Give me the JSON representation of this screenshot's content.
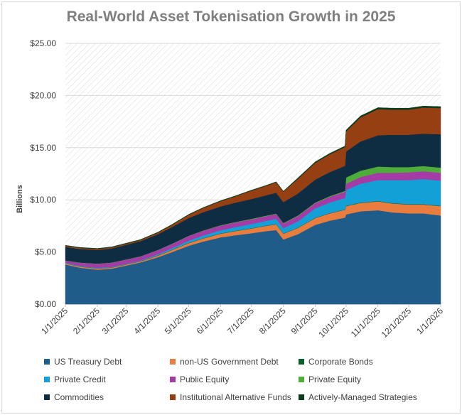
{
  "chart_data": {
    "type": "area",
    "title": "Real-World Asset Tokenisation Growth in 2025",
    "ylabel": "Billions",
    "xlabel": "",
    "ylim": [
      0,
      25
    ],
    "y_ticks": [
      "$0.00",
      "$5.00",
      "$10.00",
      "$15.00",
      "$20.00",
      "$25.00"
    ],
    "x_ticks": [
      "1/1/2025",
      "2/1/2025",
      "3/1/2025",
      "4/1/2025",
      "5/1/2025",
      "6/1/2025",
      "7/1/2025",
      "8/1/2025",
      "9/1/2025",
      "10/1/2025",
      "11/1/2025",
      "12/1/2025",
      "1/1/2026"
    ],
    "x": [
      "1/1/2025",
      "1/15/2025",
      "2/1/2025",
      "2/15/2025",
      "3/1/2025",
      "3/15/2025",
      "4/1/2025",
      "4/15/2025",
      "5/1/2025",
      "5/15/2025",
      "6/1/2025",
      "6/15/2025",
      "7/1/2025",
      "7/15/2025",
      "7/25/2025",
      "8/1/2025",
      "8/15/2025",
      "9/1/2025",
      "9/15/2025",
      "9/30/2025",
      "10/1/2025",
      "10/15/2025",
      "11/1/2025",
      "11/15/2025",
      "12/1/2025",
      "12/15/2025",
      "1/1/2026"
    ],
    "stacked": true,
    "series": [
      {
        "name": "US Treasury Debt",
        "color": "#1f5c8a",
        "values": [
          3.8,
          3.5,
          3.3,
          3.4,
          3.7,
          4.0,
          4.5,
          5.0,
          5.6,
          6.0,
          6.4,
          6.6,
          6.8,
          7.0,
          7.1,
          6.2,
          6.7,
          7.6,
          8.0,
          8.3,
          8.6,
          8.9,
          9.0,
          8.8,
          8.7,
          8.7,
          8.5
        ]
      },
      {
        "name": "non-US Government Debt",
        "color": "#e87d3e",
        "values": [
          0.1,
          0.1,
          0.1,
          0.1,
          0.1,
          0.1,
          0.15,
          0.2,
          0.25,
          0.3,
          0.35,
          0.4,
          0.45,
          0.5,
          0.55,
          0.55,
          0.6,
          0.65,
          0.7,
          0.75,
          0.8,
          0.8,
          0.85,
          0.85,
          0.85,
          0.85,
          0.9
        ]
      },
      {
        "name": "Corporate Bonds",
        "color": "#0b5e2b",
        "values": [
          0.02,
          0.02,
          0.02,
          0.02,
          0.02,
          0.02,
          0.03,
          0.03,
          0.03,
          0.03,
          0.03,
          0.03,
          0.03,
          0.03,
          0.03,
          0.03,
          0.03,
          0.03,
          0.03,
          0.03,
          0.04,
          0.04,
          0.04,
          0.04,
          0.04,
          0.04,
          0.04
        ]
      },
      {
        "name": "Private Credit",
        "color": "#12a0d7",
        "values": [
          0.05,
          0.05,
          0.05,
          0.05,
          0.05,
          0.05,
          0.1,
          0.15,
          0.2,
          0.25,
          0.3,
          0.35,
          0.4,
          0.45,
          0.5,
          0.5,
          0.6,
          0.9,
          1.0,
          1.1,
          1.5,
          1.8,
          2.0,
          2.2,
          2.3,
          2.4,
          2.4
        ]
      },
      {
        "name": "Public Equity",
        "color": "#a53ca6",
        "values": [
          0.2,
          0.3,
          0.4,
          0.4,
          0.4,
          0.4,
          0.4,
          0.4,
          0.45,
          0.45,
          0.45,
          0.45,
          0.45,
          0.45,
          0.45,
          0.45,
          0.5,
          0.5,
          0.55,
          0.6,
          0.6,
          0.65,
          0.7,
          0.7,
          0.75,
          0.75,
          0.75
        ]
      },
      {
        "name": "Private Equity",
        "color": "#4ead3a",
        "values": [
          0.02,
          0.02,
          0.02,
          0.02,
          0.02,
          0.02,
          0.02,
          0.03,
          0.03,
          0.03,
          0.04,
          0.04,
          0.05,
          0.05,
          0.05,
          0.05,
          0.06,
          0.06,
          0.07,
          0.08,
          0.6,
          0.6,
          0.6,
          0.55,
          0.5,
          0.5,
          0.5
        ]
      },
      {
        "name": "Commodities",
        "color": "#0e2d43",
        "values": [
          1.3,
          1.3,
          1.3,
          1.35,
          1.4,
          1.45,
          1.5,
          1.6,
          1.7,
          1.75,
          1.8,
          1.85,
          1.9,
          1.95,
          2.0,
          2.0,
          2.1,
          2.2,
          2.3,
          2.4,
          2.5,
          2.8,
          3.0,
          3.1,
          3.1,
          3.1,
          3.2
        ]
      },
      {
        "name": "Institutional Alternative Funds",
        "color": "#953f13",
        "values": [
          0.1,
          0.1,
          0.1,
          0.1,
          0.1,
          0.1,
          0.15,
          0.2,
          0.3,
          0.4,
          0.5,
          0.6,
          0.8,
          0.9,
          1.0,
          1.0,
          1.4,
          1.6,
          1.7,
          1.8,
          1.9,
          2.3,
          2.5,
          2.4,
          2.4,
          2.5,
          2.5
        ]
      },
      {
        "name": "Actively-Managed Strategies",
        "color": "#0f3b1c",
        "values": [
          0.05,
          0.05,
          0.05,
          0.05,
          0.05,
          0.05,
          0.05,
          0.05,
          0.05,
          0.05,
          0.05,
          0.05,
          0.05,
          0.05,
          0.05,
          0.05,
          0.1,
          0.1,
          0.1,
          0.1,
          0.15,
          0.15,
          0.15,
          0.15,
          0.15,
          0.15,
          0.15
        ]
      }
    ],
    "grid": true,
    "legend_position": "bottom"
  }
}
